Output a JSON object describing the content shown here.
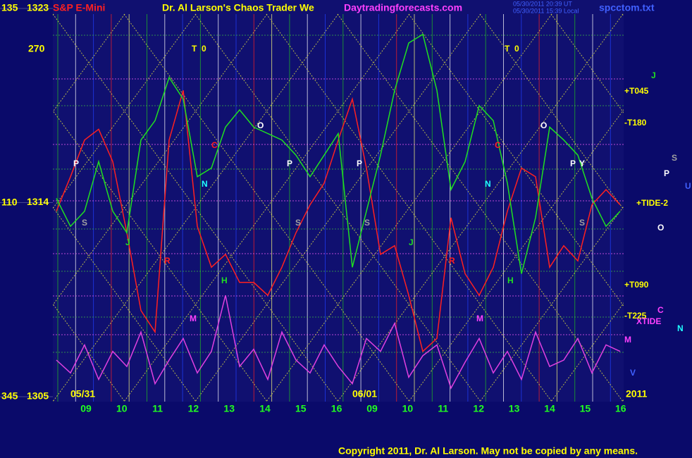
{
  "chart_data": {
    "type": "line",
    "header": {
      "symbol": "S&P E-Mini",
      "title": "Dr. Al Larson's Chaos Trader We",
      "site": "Daytradingforecasts.com",
      "time_ut": "05/30/2011 20:39 UT",
      "time_local": "05/30/2011 15:39 Local",
      "file": "spcctom.txt"
    },
    "ylim": [
      1305,
      1323
    ],
    "yticks": [
      1305,
      1314,
      1323
    ],
    "left_labels": [
      "135",
      "270",
      "110",
      "345"
    ],
    "hour_labels": [
      "09",
      "10",
      "11",
      "12",
      "13",
      "14",
      "15",
      "16",
      "09",
      "10",
      "11",
      "12",
      "13",
      "14",
      "15",
      "16"
    ],
    "date_labels": [
      "05/31",
      "06/01",
      "2011"
    ],
    "series": [
      {
        "color": "#ff2020",
        "values": [
          1313.6,
          1315.2,
          1316.9,
          1317.4,
          1315.9,
          1312.6,
          1309.0,
          1308.0,
          1316.9,
          1319.2,
          1312.9,
          1311.0,
          1311.6,
          1310.3,
          1310.3,
          1309.7,
          1311.0,
          1312.6,
          1313.9,
          1314.9,
          1316.9,
          1318.8,
          1315.6,
          1311.6,
          1312.0,
          1309.7,
          1307.1,
          1307.7,
          1313.3,
          1310.7,
          1309.7,
          1311.0,
          1313.6,
          1315.6,
          1315.2,
          1311.0,
          1312.0,
          1311.3,
          1313.9,
          1314.6,
          1313.9
        ]
      },
      {
        "color": "#20e020",
        "values": [
          1314.2,
          1312.9,
          1313.6,
          1315.9,
          1313.6,
          1312.6,
          1316.9,
          1317.8,
          1319.8,
          1318.8,
          1315.2,
          1315.6,
          1317.5,
          1318.3,
          1317.5,
          1317.2,
          1316.9,
          1316.2,
          1315.2,
          1316.2,
          1317.2,
          1311.0,
          1313.6,
          1316.2,
          1319.2,
          1321.4,
          1321.8,
          1319.2,
          1314.6,
          1315.9,
          1318.5,
          1317.8,
          1314.9,
          1310.7,
          1313.3,
          1317.5,
          1316.9,
          1316.2,
          1314.2,
          1312.9,
          1313.6
        ]
      },
      {
        "color": "#e040e0",
        "values": [
          1306.7,
          1306.1,
          1307.4,
          1305.8,
          1307.1,
          1306.4,
          1308.0,
          1305.6,
          1306.7,
          1307.7,
          1306.1,
          1307.1,
          1309.7,
          1306.4,
          1307.2,
          1305.8,
          1308.0,
          1306.7,
          1306.1,
          1307.4,
          1306.4,
          1305.6,
          1307.7,
          1307.1,
          1308.4,
          1305.9,
          1306.9,
          1307.4,
          1305.4,
          1306.6,
          1307.7,
          1306.1,
          1307.1,
          1305.8,
          1308.0,
          1306.4,
          1306.7,
          1307.7,
          1306.1,
          1307.4,
          1307.1
        ]
      }
    ],
    "annotations": [
      "T  0",
      "P",
      "S",
      "J",
      "R",
      "M",
      "H",
      "N",
      "C",
      "O",
      "P",
      "S",
      "P",
      "S",
      "J",
      "R",
      "M",
      "H",
      "N",
      "C",
      "O",
      "P",
      "Y",
      "S",
      "T  0",
      "+T045",
      "-T180",
      "+T090",
      "-T225",
      "+TIDE-2",
      "XTIDE",
      "J",
      "S",
      "P",
      "U",
      "O",
      "C",
      "N",
      "M",
      "V"
    ],
    "copyright": "Copyright 2011, Dr. Al Larson. May not be copied by any means."
  }
}
